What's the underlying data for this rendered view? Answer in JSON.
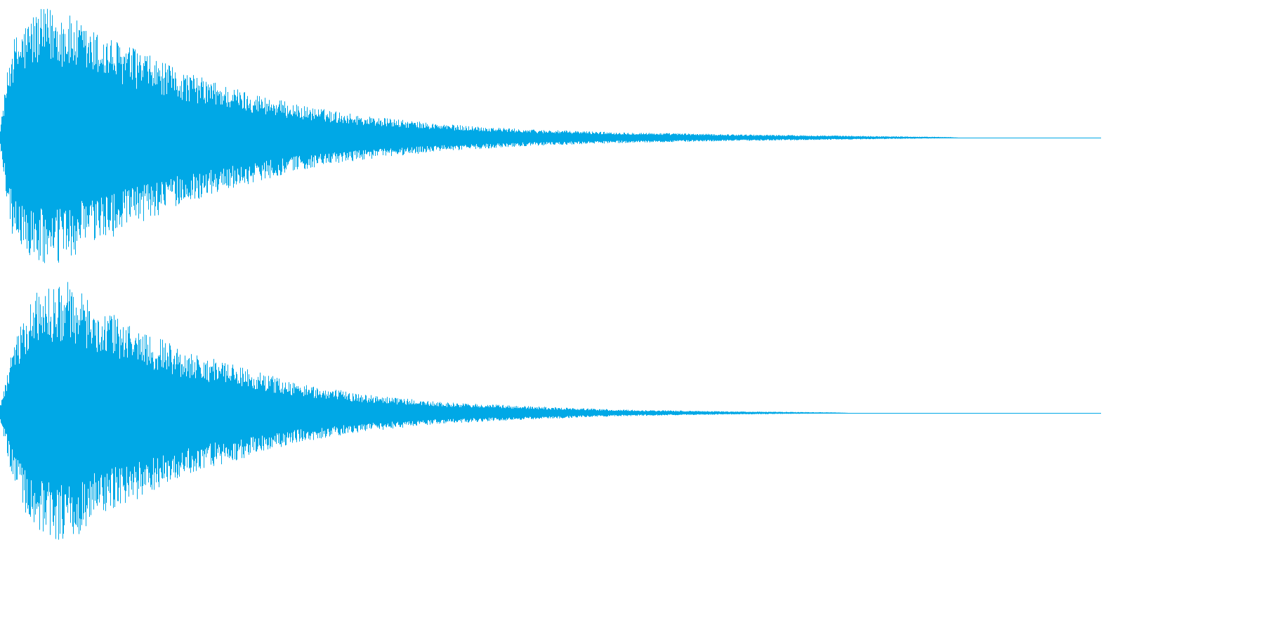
{
  "chart_data": {
    "type": "line",
    "title": "",
    "xlabel": "",
    "ylabel": "",
    "grid": false,
    "legend": "none",
    "description": "",
    "x_range": [
      0,
      1
    ],
    "y_range": [
      -1,
      1
    ],
    "series": [
      {
        "channel": 1,
        "color": "#00a8e6",
        "peak_amplitude": 0.96,
        "envelope": [
          {
            "t": 0.0,
            "amp": 0.08
          },
          {
            "t": 0.01,
            "amp": 0.7
          },
          {
            "t": 0.03,
            "amp": 0.92
          },
          {
            "t": 0.05,
            "amp": 0.96
          },
          {
            "t": 0.08,
            "amp": 0.8
          },
          {
            "t": 0.12,
            "amp": 0.66
          },
          {
            "t": 0.16,
            "amp": 0.5
          },
          {
            "t": 0.21,
            "amp": 0.37
          },
          {
            "t": 0.27,
            "amp": 0.24
          },
          {
            "t": 0.33,
            "amp": 0.16
          },
          {
            "t": 0.4,
            "amp": 0.1
          },
          {
            "t": 0.48,
            "amp": 0.06
          },
          {
            "t": 0.56,
            "amp": 0.04
          },
          {
            "t": 0.66,
            "amp": 0.025
          },
          {
            "t": 0.76,
            "amp": 0.015
          },
          {
            "t": 0.86,
            "amp": 0.005
          },
          {
            "t": 0.87,
            "amp": 0.0
          },
          {
            "t": 1.0,
            "amp": 0.0
          }
        ]
      },
      {
        "channel": 2,
        "color": "#00a8e6",
        "peak_amplitude": 0.98,
        "envelope": [
          {
            "t": 0.0,
            "amp": 0.06
          },
          {
            "t": 0.01,
            "amp": 0.45
          },
          {
            "t": 0.03,
            "amp": 0.9
          },
          {
            "t": 0.06,
            "amp": 0.98
          },
          {
            "t": 0.09,
            "amp": 0.78
          },
          {
            "t": 0.13,
            "amp": 0.62
          },
          {
            "t": 0.17,
            "amp": 0.46
          },
          {
            "t": 0.22,
            "amp": 0.34
          },
          {
            "t": 0.27,
            "amp": 0.22
          },
          {
            "t": 0.33,
            "amp": 0.14
          },
          {
            "t": 0.4,
            "amp": 0.08
          },
          {
            "t": 0.48,
            "amp": 0.05
          },
          {
            "t": 0.56,
            "amp": 0.025
          },
          {
            "t": 0.66,
            "amp": 0.012
          },
          {
            "t": 0.76,
            "amp": 0.004
          },
          {
            "t": 0.77,
            "amp": 0.0
          },
          {
            "t": 1.0,
            "amp": 0.0
          }
        ]
      }
    ]
  }
}
